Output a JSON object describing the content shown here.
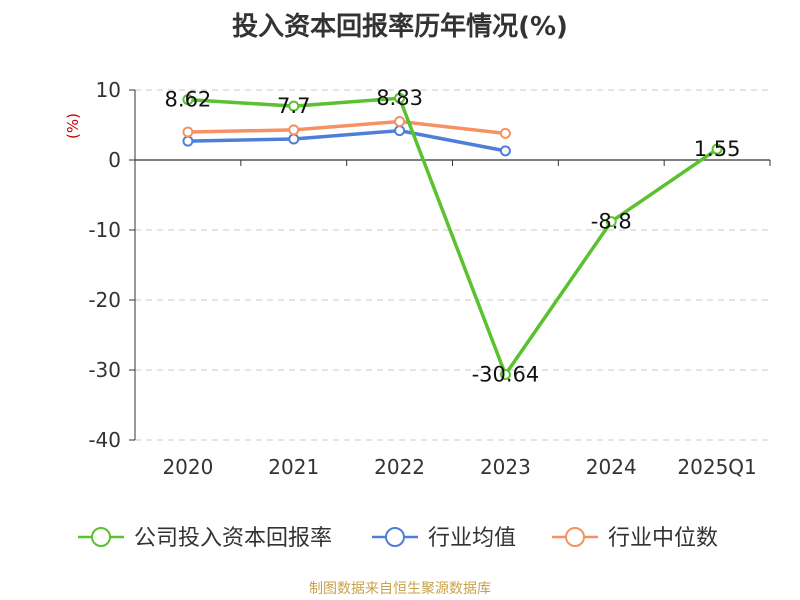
{
  "chart_data": {
    "type": "line",
    "title": "投入资本回报率历年情况(%)",
    "ylabel": "(%)",
    "xlabel": "",
    "categories": [
      "2020",
      "2021",
      "2022",
      "2023",
      "2024",
      "2025Q1"
    ],
    "ylim": [
      -40,
      10
    ],
    "yticks": [
      10,
      0,
      -10,
      -20,
      -30,
      -40
    ],
    "grid": true,
    "legend_position": "bottom",
    "series": [
      {
        "name": "公司投入资本回报率",
        "color": "#5ac12f",
        "values": [
          8.62,
          7.7,
          8.83,
          -30.64,
          -8.8,
          1.55
        ],
        "labels": [
          "8.62",
          "7.7",
          "8.83",
          "-30.64",
          "-8.8",
          "1.55"
        ]
      },
      {
        "name": "行业均值",
        "color": "#4e7fd8",
        "values": [
          2.7,
          3.0,
          4.2,
          1.3,
          null,
          null
        ]
      },
      {
        "name": "行业中位数",
        "color": "#f59162",
        "values": [
          4.0,
          4.3,
          5.5,
          3.8,
          null,
          null
        ]
      }
    ]
  },
  "footer": {
    "source": "制图数据来自恒生聚源数据库"
  }
}
